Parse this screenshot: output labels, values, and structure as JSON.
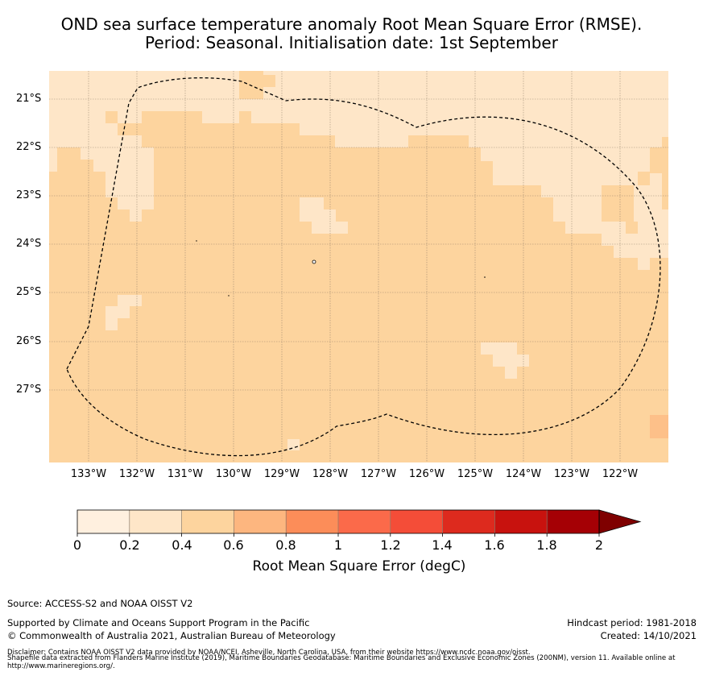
{
  "title": {
    "line1": "OND sea surface temperature anomaly Root Mean Square Error (RMSE).",
    "line2": "Period: Seasonal. Initialisation date: 1st September"
  },
  "map": {
    "latitude_labels": [
      "21°S",
      "22°S",
      "23°S",
      "24°S",
      "25°S",
      "26°S",
      "27°S"
    ],
    "longitude_labels": [
      "133°W",
      "132°W",
      "131°W",
      "130°W",
      "129°W",
      "128°W",
      "127°W",
      "126°W",
      "125°W",
      "124°W",
      "123°W",
      "122°W"
    ],
    "eez_boundary": "Pitcairn Islands EEZ (dashed)",
    "colors": {
      "bin_0_02": "#fff0df",
      "bin_02_04": "#fee6c8",
      "bin_04_06": "#fdd49e",
      "ocean_dominant": "#fdd49e"
    }
  },
  "colorbar": {
    "label": "Root Mean Square Error (degC)",
    "ticks": [
      "0",
      "0.2",
      "0.4",
      "0.6",
      "0.8",
      "1",
      "1.2",
      "1.4",
      "1.6",
      "1.8",
      "2"
    ],
    "colors": [
      "#fff0df",
      "#fee6c8",
      "#fdd49e",
      "#fdb67f",
      "#fc8d59",
      "#fb6a4a",
      "#f44d38",
      "#dd2a1e",
      "#c8120e",
      "#a50005"
    ],
    "extend_color": "#7f0000"
  },
  "footer": {
    "source": "Source: ACCESS-S2 and NOAA OISST V2",
    "supported": "Supported by Climate and Oceans Support Program in the Pacific",
    "copyright": "© Commonwealth of Australia 2021, Australian Bureau of Meteorology",
    "hindcast": "Hindcast period: 1981-2018",
    "created": "Created: 14/10/2021",
    "disclaimer1": "Disclaimer: Contains NOAA OISST V2 data provided by NOAA/NCEI, Asheville, North Carolina, USA, from their website https://www.ncdc.noaa.gov/oisst.",
    "disclaimer2": "Shapefile data extracted from Flanders Marine Institute (2019), Maritime Boundaries Geodatabase: Maritime Boundaries and Exclusive Economic Zones (200NM), version 11. Available online at http://www.marineregions.org/."
  }
}
